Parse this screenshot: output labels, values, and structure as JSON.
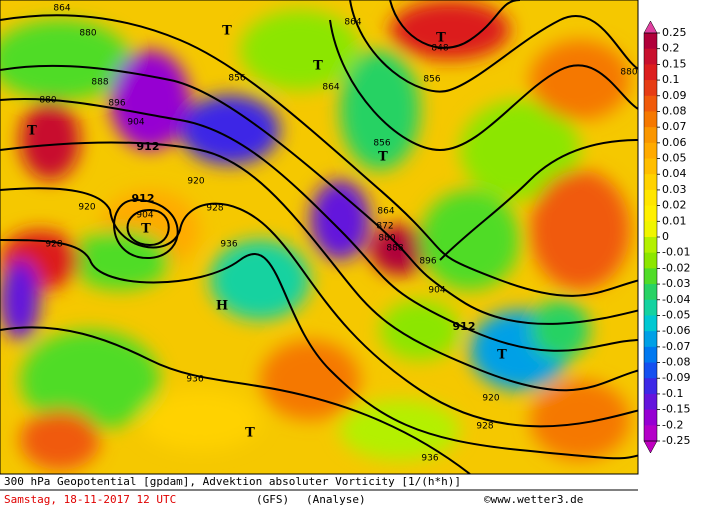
{
  "map": {
    "contour_labels": [
      864,
      880,
      888,
      896,
      904,
      912,
      880,
      920,
      912,
      904,
      928,
      920,
      928,
      936,
      936,
      928,
      920,
      912,
      904,
      896,
      888,
      880,
      872,
      864,
      856,
      856,
      864,
      864,
      848,
      856,
      880,
      936
    ],
    "markers": [
      "T",
      "T",
      "T",
      "T",
      "T",
      "T",
      "H",
      "T",
      "T"
    ]
  },
  "colorbar": {
    "ticks": [
      0.25,
      0.2,
      0.15,
      0.1,
      0.09,
      0.08,
      0.07,
      0.06,
      0.05,
      0.04,
      0.03,
      0.02,
      0.01,
      0,
      -0.01,
      -0.02,
      -0.03,
      -0.04,
      -0.05,
      -0.06,
      -0.07,
      -0.08,
      -0.09,
      -0.1,
      -0.15,
      -0.2,
      -0.25
    ],
    "colors": [
      "#b0003a",
      "#c8102e",
      "#dc1e1e",
      "#e63c14",
      "#f05a0a",
      "#f57800",
      "#fa9600",
      "#ffaa00",
      "#ffbe00",
      "#ffd200",
      "#ffe600",
      "#fff000",
      "#f0f500",
      "#b4f000",
      "#8ce600",
      "#50dc28",
      "#28d264",
      "#14d2a0",
      "#00c8d2",
      "#00a0e6",
      "#0078f0",
      "#1450f0",
      "#3c28e6",
      "#6414dc",
      "#9600d2",
      "#b400c8"
    ],
    "top_color": "#e040a0",
    "bottom_color": "#c000c0"
  },
  "footer": {
    "title": "300 hPa Geopotential [gpdam], Advektion absoluter Vorticity [1/(h*h)]",
    "date": "Samstag, 18-11-2017  12 UTC",
    "model": "(GFS)",
    "run": "(Analyse)",
    "credit": "©www.wetter3.de"
  }
}
